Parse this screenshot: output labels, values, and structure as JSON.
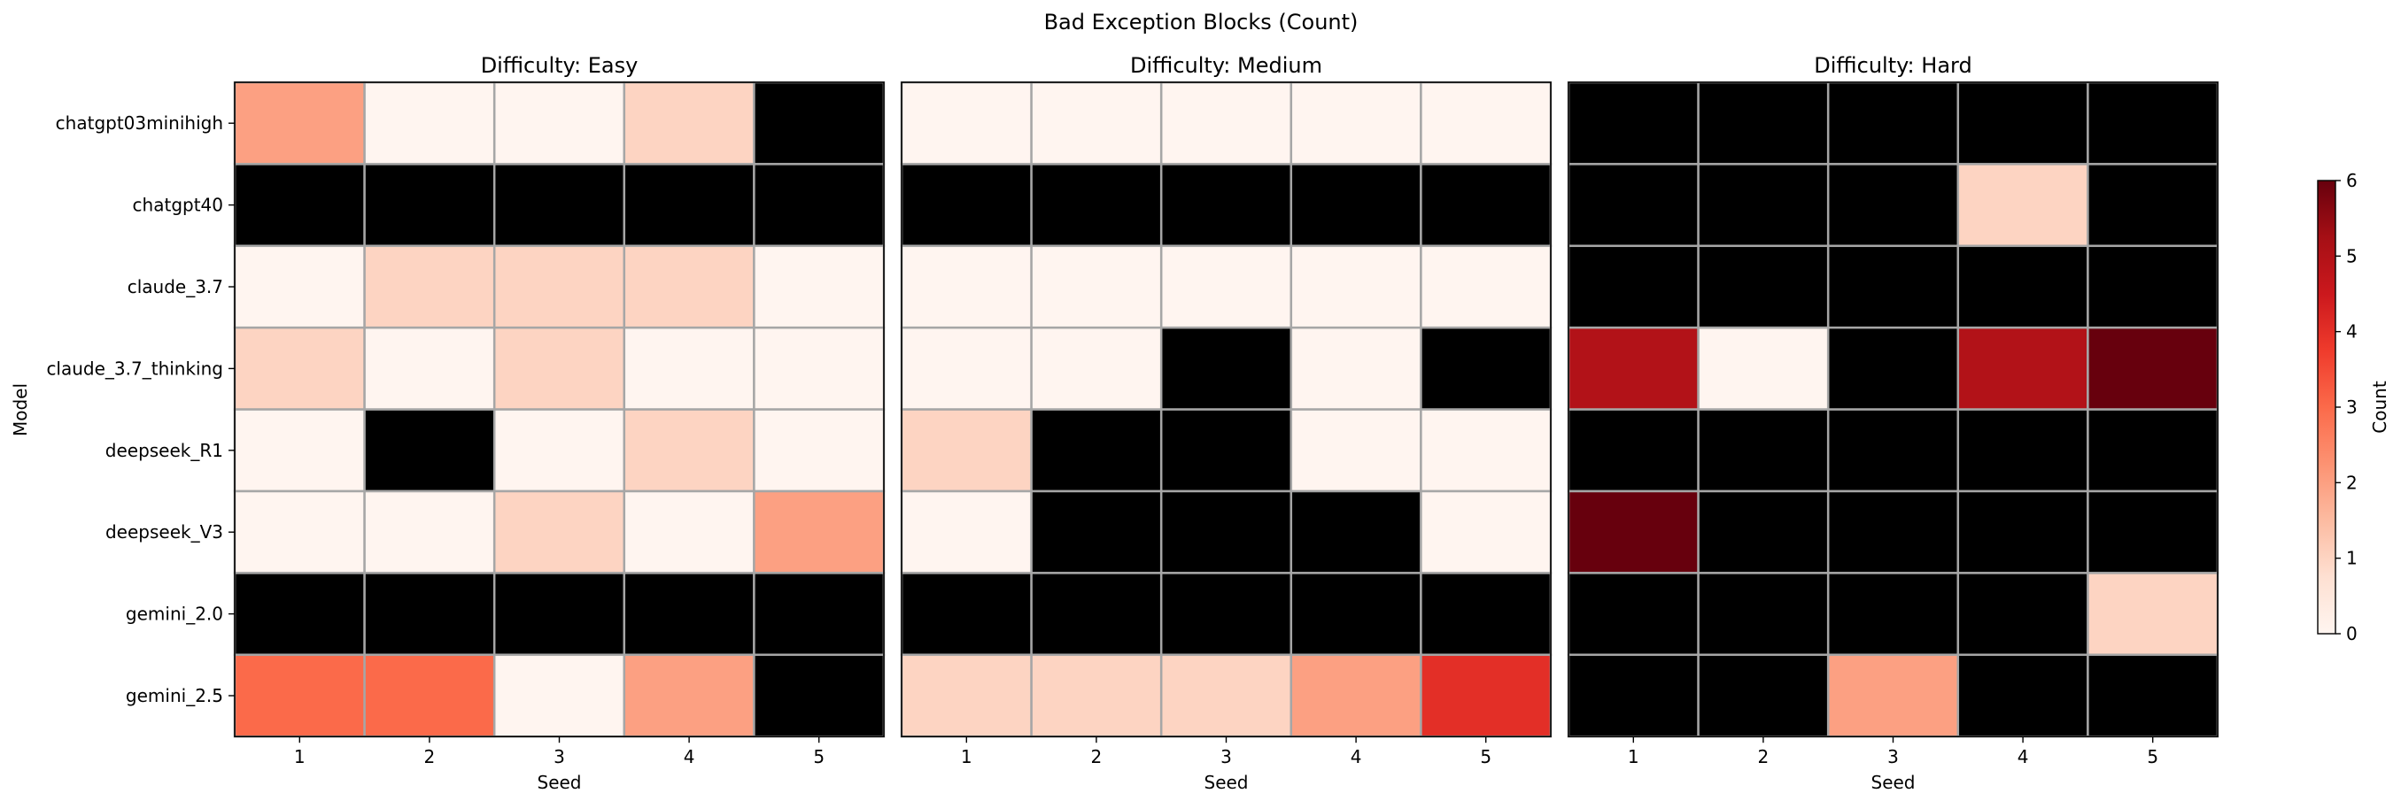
{
  "figure": {
    "title": "Bad Exception Blocks (Count)",
    "ylabel": "Model"
  },
  "colorbar": {
    "label": "Count",
    "ticks": [
      "0",
      "1",
      "2",
      "3",
      "4",
      "5",
      "6"
    ],
    "range": [
      0,
      6
    ],
    "colormap": "Reds",
    "stops": [
      "#fff5f0",
      "#fee0d2",
      "#fcbba1",
      "#fc9272",
      "#fb6a4a",
      "#ef3b2c",
      "#cb181d",
      "#a50f15",
      "#67000d"
    ]
  },
  "colors": {
    "missing": "#000000",
    "grid": "#a6a6a6"
  },
  "chart_data": [
    {
      "type": "heatmap",
      "title": "Difficulty: Easy",
      "xlabel": "Seed",
      "ylabel": "Model",
      "x": [
        "1",
        "2",
        "3",
        "4",
        "5"
      ],
      "y": [
        "chatgpt03minihigh",
        "chatgpt40",
        "claude_3.7",
        "claude_3.7_thinking",
        "deepseek_R1",
        "deepseek_V3",
        "gemini_2.0",
        "gemini_2.5"
      ],
      "values": [
        [
          2,
          0,
          0,
          1,
          null
        ],
        [
          null,
          null,
          null,
          null,
          null
        ],
        [
          0,
          1,
          1,
          1,
          0
        ],
        [
          1,
          0,
          1,
          0,
          0
        ],
        [
          0,
          null,
          0,
          1,
          0
        ],
        [
          0,
          0,
          1,
          0,
          2
        ],
        [
          null,
          null,
          null,
          null,
          null
        ],
        [
          3,
          3,
          0,
          2,
          null
        ]
      ],
      "vmin": 0,
      "vmax": 6
    },
    {
      "type": "heatmap",
      "title": "Difficulty: Medium",
      "xlabel": "Seed",
      "x": [
        "1",
        "2",
        "3",
        "4",
        "5"
      ],
      "y": [
        "chatgpt03minihigh",
        "chatgpt40",
        "claude_3.7",
        "claude_3.7_thinking",
        "deepseek_R1",
        "deepseek_V3",
        "gemini_2.0",
        "gemini_2.5"
      ],
      "values": [
        [
          0,
          0,
          0,
          0,
          0
        ],
        [
          null,
          null,
          null,
          null,
          null
        ],
        [
          0,
          0,
          0,
          0,
          0
        ],
        [
          0,
          0,
          null,
          0,
          null
        ],
        [
          1,
          null,
          null,
          0,
          0
        ],
        [
          0,
          null,
          null,
          null,
          0
        ],
        [
          null,
          null,
          null,
          null,
          null
        ],
        [
          1,
          1,
          1,
          2,
          4
        ]
      ],
      "vmin": 0,
      "vmax": 6
    },
    {
      "type": "heatmap",
      "title": "Difficulty: Hard",
      "xlabel": "Seed",
      "x": [
        "1",
        "2",
        "3",
        "4",
        "5"
      ],
      "y": [
        "chatgpt03minihigh",
        "chatgpt40",
        "claude_3.7",
        "claude_3.7_thinking",
        "deepseek_R1",
        "deepseek_V3",
        "gemini_2.0",
        "gemini_2.5"
      ],
      "values": [
        [
          null,
          null,
          null,
          null,
          null
        ],
        [
          null,
          null,
          null,
          1,
          null
        ],
        [
          null,
          null,
          null,
          null,
          null
        ],
        [
          5,
          0,
          null,
          5,
          6
        ],
        [
          null,
          null,
          null,
          null,
          null
        ],
        [
          6,
          null,
          null,
          null,
          null
        ],
        [
          null,
          null,
          null,
          null,
          1
        ],
        [
          null,
          null,
          2,
          null,
          null
        ]
      ],
      "vmin": 0,
      "vmax": 6
    }
  ]
}
